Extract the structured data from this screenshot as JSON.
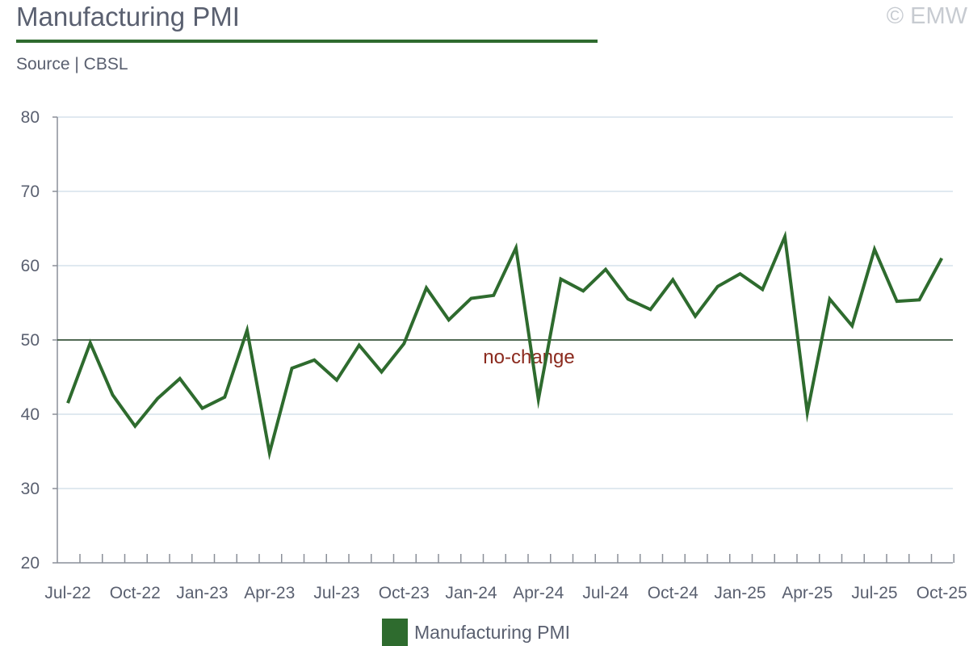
{
  "header": {
    "title": "Manufacturing PMI",
    "source": "Source | CBSL",
    "copyright": "© EMW"
  },
  "colors": {
    "series": "#2e6b2e",
    "reference_line": "#1f3d1f",
    "annotation": "#8b2a1e",
    "grid": "#d6e2ec",
    "axis": "#8a8f98"
  },
  "chart_data": {
    "type": "line",
    "title": "Manufacturing PMI",
    "xlabel": "",
    "ylabel": "",
    "ylim": [
      20,
      80
    ],
    "yticks": [
      20,
      30,
      40,
      50,
      60,
      70,
      80
    ],
    "grid": true,
    "legend_position": "bottom-center",
    "x": [
      "Jul-22",
      "Aug-22",
      "Sep-22",
      "Oct-22",
      "Nov-22",
      "Dec-22",
      "Jan-23",
      "Feb-23",
      "Mar-23",
      "Apr-23",
      "May-23",
      "Jun-23",
      "Jul-23",
      "Aug-23",
      "Sep-23",
      "Oct-23",
      "Nov-23",
      "Dec-23",
      "Jan-24",
      "Feb-24",
      "Mar-24",
      "Apr-24",
      "May-24",
      "Jun-24",
      "Jul-24",
      "Aug-24",
      "Sep-24",
      "Oct-24",
      "Nov-24",
      "Dec-24",
      "Jan-25",
      "Feb-25",
      "Mar-25",
      "Apr-25",
      "May-25",
      "Jun-25",
      "Jul-25",
      "Aug-25",
      "Sep-25",
      "Oct-25"
    ],
    "x_tick_labels": [
      "Jul-22",
      "Oct-22",
      "Jan-23",
      "Apr-23",
      "Jul-23",
      "Oct-23",
      "Jan-24",
      "Apr-24",
      "Jul-24",
      "Oct-24",
      "Jan-25",
      "Apr-25",
      "Jul-25",
      "Oct-25"
    ],
    "series": [
      {
        "name": "Manufacturing PMI",
        "values": [
          41.5,
          49.6,
          42.6,
          38.4,
          42.1,
          44.8,
          40.8,
          42.3,
          51.3,
          34.8,
          46.2,
          47.3,
          44.6,
          49.3,
          45.7,
          49.5,
          57.0,
          52.7,
          55.6,
          56.0,
          62.4,
          42.0,
          58.2,
          56.6,
          59.5,
          55.5,
          54.1,
          58.1,
          53.2,
          57.2,
          58.9,
          56.8,
          63.9,
          40.2,
          55.5,
          51.9,
          62.2,
          55.2,
          55.4,
          61.0
        ]
      }
    ],
    "reference_line": {
      "value": 50,
      "label": "no-change"
    }
  }
}
